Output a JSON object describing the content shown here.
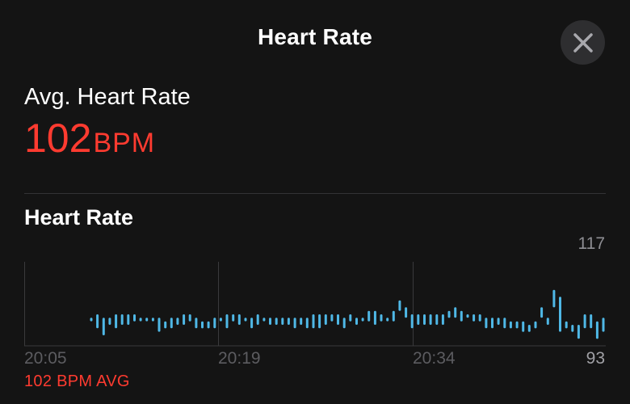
{
  "header": {
    "title": "Heart Rate",
    "close_icon": "close-icon"
  },
  "summary": {
    "label": "Avg. Heart Rate",
    "value": "102",
    "unit": "BPM"
  },
  "section": {
    "title": "Heart Rate"
  },
  "chart_data": {
    "type": "bar",
    "title": "Heart Rate",
    "x_ticks": [
      "20:05",
      "20:19",
      "20:34"
    ],
    "y_max_label": "117",
    "y_min_label": "93",
    "ylim": [
      93,
      117
    ],
    "bar_color": "#4fb8e6",
    "avg_caption": "102 BPM AVG",
    "ranges": [
      [
        100,
        101
      ],
      [
        98,
        102
      ],
      [
        96,
        101
      ],
      [
        99,
        101
      ],
      [
        98,
        102
      ],
      [
        99,
        102
      ],
      [
        99,
        102
      ],
      [
        100,
        102
      ],
      [
        100,
        101
      ],
      [
        100,
        101
      ],
      [
        100,
        101
      ],
      [
        97,
        101
      ],
      [
        98,
        100
      ],
      [
        98,
        101
      ],
      [
        99,
        101
      ],
      [
        99,
        102
      ],
      [
        100,
        102
      ],
      [
        98,
        101
      ],
      [
        98,
        100
      ],
      [
        98,
        100
      ],
      [
        98,
        101
      ],
      [
        100,
        101
      ],
      [
        98,
        102
      ],
      [
        100,
        102
      ],
      [
        99,
        102
      ],
      [
        100,
        101
      ],
      [
        98,
        101
      ],
      [
        99,
        102
      ],
      [
        100,
        101
      ],
      [
        99,
        101
      ],
      [
        99,
        101
      ],
      [
        99,
        101
      ],
      [
        99,
        101
      ],
      [
        98,
        101
      ],
      [
        99,
        101
      ],
      [
        98,
        101
      ],
      [
        98,
        102
      ],
      [
        98,
        102
      ],
      [
        99,
        102
      ],
      [
        100,
        102
      ],
      [
        99,
        102
      ],
      [
        98,
        101
      ],
      [
        100,
        102
      ],
      [
        99,
        101
      ],
      [
        100,
        101
      ],
      [
        100,
        103
      ],
      [
        99,
        103
      ],
      [
        100,
        102
      ],
      [
        100,
        101
      ],
      [
        100,
        103
      ],
      [
        103,
        106
      ],
      [
        101,
        104
      ],
      [
        98,
        102
      ],
      [
        99,
        102
      ],
      [
        99,
        102
      ],
      [
        99,
        102
      ],
      [
        99,
        102
      ],
      [
        99,
        102
      ],
      [
        101,
        103
      ],
      [
        101,
        104
      ],
      [
        100,
        103
      ],
      [
        101,
        102
      ],
      [
        100,
        102
      ],
      [
        100,
        102
      ],
      [
        98,
        101
      ],
      [
        98,
        101
      ],
      [
        99,
        101
      ],
      [
        98,
        101
      ],
      [
        98,
        100
      ],
      [
        98,
        100
      ],
      [
        97,
        100
      ],
      [
        97,
        99
      ],
      [
        98,
        100
      ],
      [
        101,
        104
      ],
      [
        99,
        101
      ],
      [
        104,
        109
      ],
      [
        97,
        107
      ],
      [
        98,
        100
      ],
      [
        97,
        99
      ],
      [
        95,
        99
      ],
      [
        98,
        102
      ],
      [
        98,
        102
      ],
      [
        95,
        100
      ],
      [
        97,
        101
      ]
    ]
  }
}
